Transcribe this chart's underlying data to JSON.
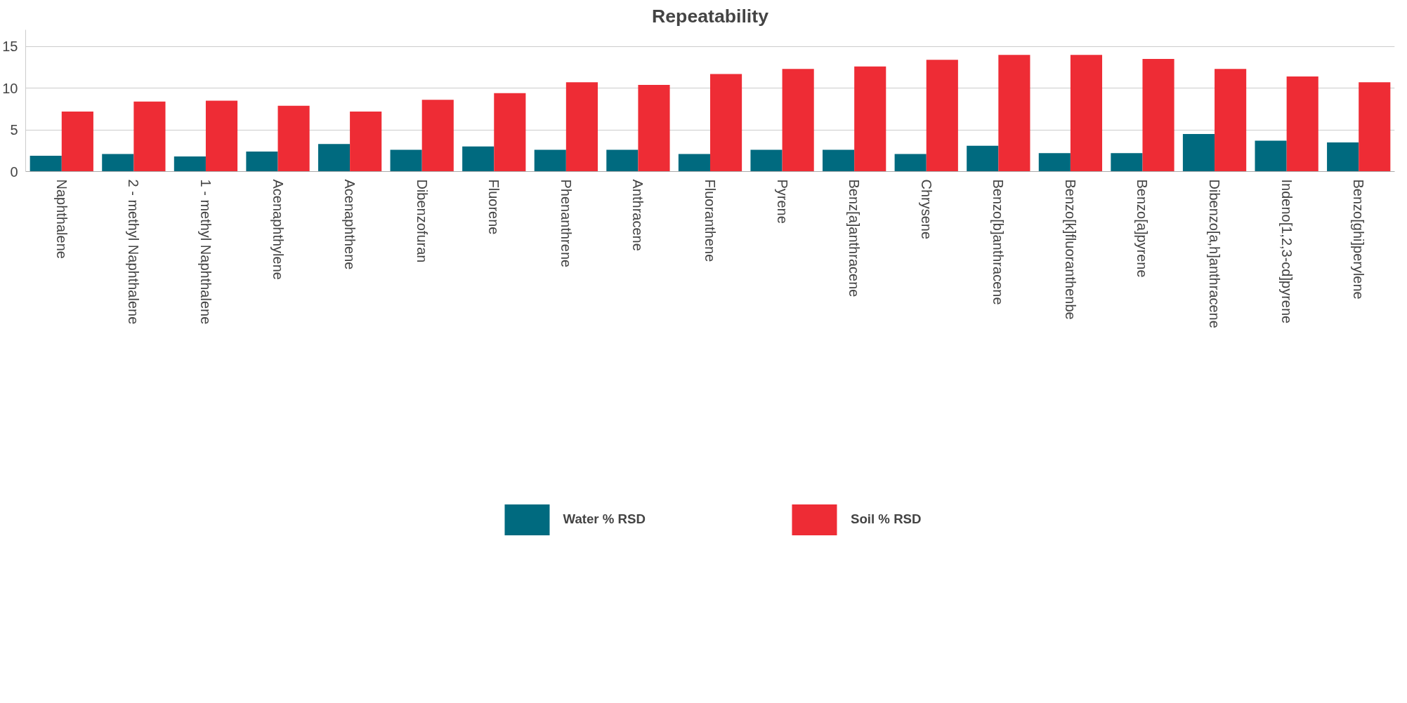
{
  "chart_data": {
    "type": "bar",
    "title": "Repeatability",
    "categories": [
      "Naphthalene",
      "2 - methyl Naphthalene",
      "1 - methyl Naphthalene",
      "Acenaphthylene",
      "Acenaphthene",
      "Dibenzofuran",
      "Fluorene",
      "Phenanthrene",
      "Anthracene",
      "Fluoranthene",
      "Pyrene",
      "Benz[a]anthracene",
      "Chrysene",
      "Benzo[b]anthracene",
      "Benzo[k]fluoranthenbe",
      "Benzo[a]pyrene",
      "Dibenzo[a,h]anthracene",
      "Indeno[1,2,3-cd]pyrene",
      "Benzo[ghi]perylene"
    ],
    "series": [
      {
        "name": "Water % RSD",
        "color": "#006a7f",
        "values": [
          1.9,
          2.1,
          1.8,
          2.4,
          3.3,
          2.6,
          3.0,
          2.6,
          2.6,
          2.1,
          2.6,
          2.6,
          2.1,
          3.1,
          2.2,
          2.2,
          4.5,
          3.7,
          3.5
        ]
      },
      {
        "name": "Soil % RSD",
        "color": "#ee2c35",
        "values": [
          7.2,
          8.4,
          8.5,
          7.9,
          7.2,
          8.6,
          9.4,
          10.7,
          10.4,
          11.7,
          12.3,
          12.6,
          13.4,
          14.0,
          14.0,
          13.5,
          12.3,
          11.4,
          10.7
        ]
      }
    ],
    "ylim": [
      0,
      17
    ],
    "yticks": [
      0,
      5,
      10,
      15
    ],
    "grid": "y",
    "legend": "bottom"
  }
}
